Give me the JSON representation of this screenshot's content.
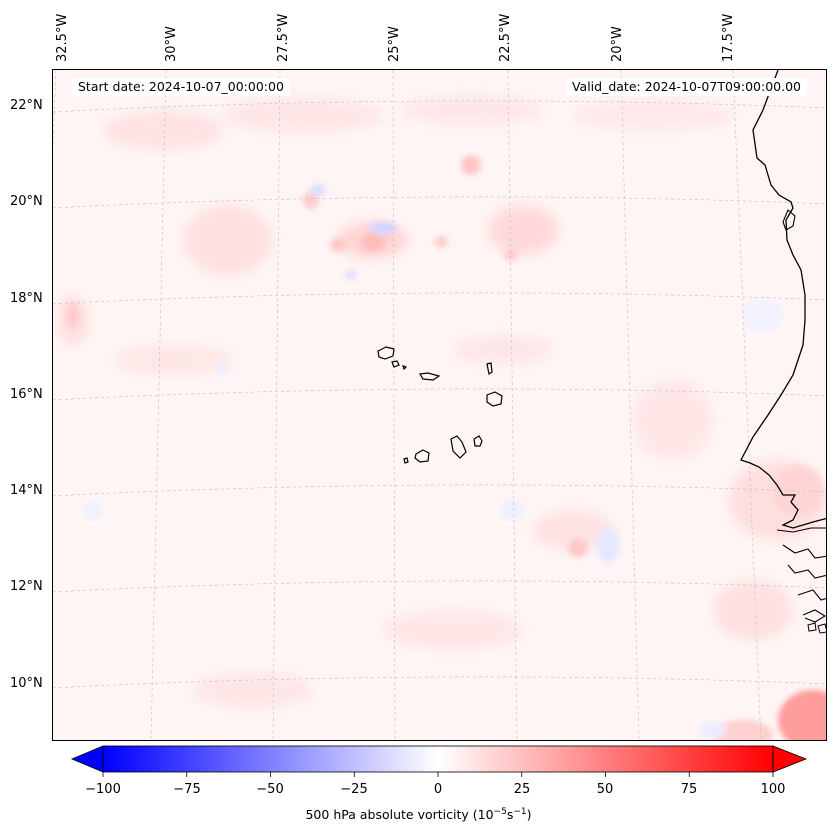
{
  "header": {
    "start_date": "Start date: 2024-10-07_00:00:00",
    "valid_date": "Valid_date: 2024-10-07T09:00:00.00"
  },
  "axes": {
    "longitude_labels": [
      "32.5°W",
      "30°W",
      "27.5°W",
      "25°W",
      "22.5°W",
      "20°W",
      "17.5°W"
    ],
    "latitude_labels": [
      "22°N",
      "20°N",
      "18°N",
      "16°N",
      "14°N",
      "12°N",
      "10°N"
    ],
    "grid": true
  },
  "colorbar": {
    "label_main": "500 hPa absolute vorticity (10",
    "label_exp1": "−5",
    "label_mid": "s",
    "label_exp2": "−1",
    "label_end": ")",
    "tick_labels": [
      "−100",
      "−75",
      "−50",
      "−25",
      "0",
      "25",
      "50",
      "75",
      "100"
    ],
    "range": [
      -100,
      100
    ],
    "extend": "both",
    "colormap": "bwr",
    "negative_color": "#0000ff",
    "zero_color": "#ffffff",
    "positive_color": "#ff0000"
  },
  "colors": {
    "background_field": "#fff6f6",
    "coastline": "#000000",
    "gridline": "#bbbbbb"
  }
}
